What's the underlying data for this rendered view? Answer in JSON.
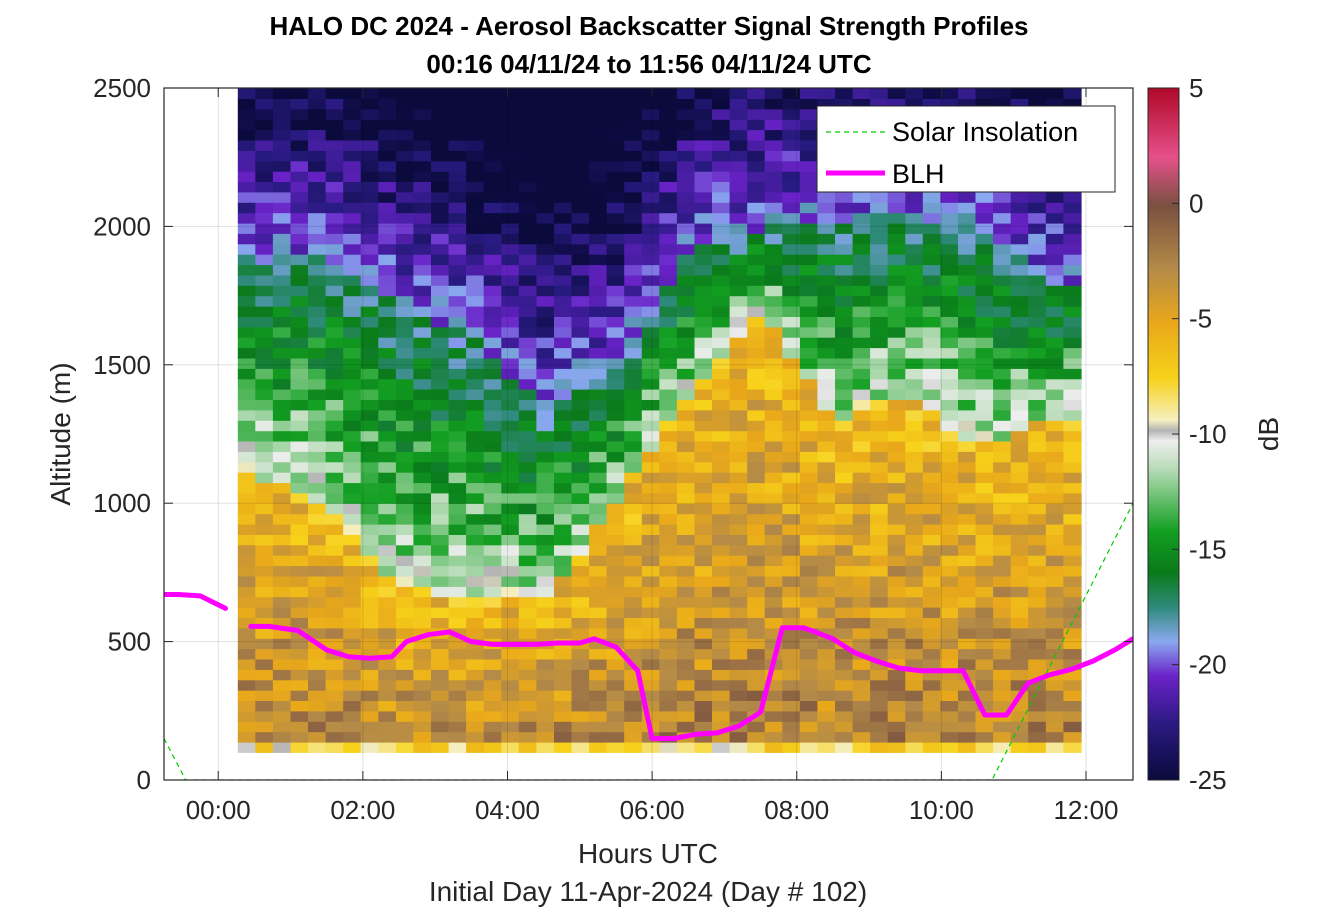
{
  "chart_data": {
    "type": "heatmap",
    "title": "HALO DC 2024 - Aerosol Backscatter Signal Strength Profiles",
    "subtitle": "00:16 04/11/24 to 11:56 04/11/24  UTC",
    "xlabel": "Hours UTC",
    "xlabel2": "Initial Day 11-Apr-2024 (Day # 102)",
    "ylabel": "Altitude (m)",
    "colorbar_label": "dB",
    "xlim": [
      -0.75,
      12.65
    ],
    "ylim": [
      0,
      2500
    ],
    "x_ticks": [
      0,
      2,
      4,
      6,
      8,
      10,
      12
    ],
    "x_tick_labels": [
      "00:00",
      "02:00",
      "04:00",
      "06:00",
      "08:00",
      "10:00",
      "12:00"
    ],
    "y_ticks": [
      0,
      500,
      1000,
      1500,
      2000,
      2500
    ],
    "y_tick_labels": [
      "0",
      "500",
      "1000",
      "1500",
      "2000",
      "2500"
    ],
    "clim": [
      -25,
      5
    ],
    "colorbar_ticks": [
      5,
      0,
      -5,
      -10,
      -15,
      -20,
      -25
    ],
    "colorbar_tick_labels": [
      "5",
      "0",
      "-5",
      "-10",
      "-15",
      "-20",
      "-25"
    ],
    "grid": true,
    "legend_position": "top-right",
    "heatmap": {
      "x_start_hours": 0.27,
      "x_end_hours": 11.93,
      "y_bottom_m": 100,
      "y_top_m": 2500,
      "top_of_profile_m": [
        2500,
        2500,
        2500,
        2500,
        2500,
        2500,
        2500,
        2500,
        2500,
        2500,
        2500,
        2500
      ],
      "bottom_row_m": [
        100,
        150
      ],
      "profile_times_hours": [
        0.5,
        1.5,
        2.5,
        3.5,
        4.5,
        5.5,
        6.5,
        7.5,
        8.5,
        9.5,
        10.5,
        11.5
      ],
      "layer_top_m": [
        1100,
        1000,
        700,
        650,
        650,
        1000,
        1400,
        1700,
        1300,
        1400,
        1200,
        1300
      ],
      "clean_top_m": [
        1900,
        1900,
        1700,
        1600,
        1350,
        1500,
        1900,
        2000,
        2000,
        2050,
        2000,
        1800
      ]
    },
    "series": [
      {
        "name": "Solar Insolation",
        "style": "dashed",
        "color": "#00cc00",
        "x": [
          -0.75,
          -0.45,
          10.7,
          12.65
        ],
        "y": [
          150,
          0,
          0,
          1000
        ]
      },
      {
        "name": "BLH",
        "style": "solid",
        "color": "#ff00ff",
        "segments": [
          {
            "x": [
              -0.75,
              -0.55,
              -0.25,
              0.1
            ],
            "y": [
              670,
              670,
              665,
              620
            ]
          },
          {
            "x": [
              0.45,
              0.7,
              1.1,
              1.5,
              1.8,
              2.1,
              2.4,
              2.6,
              2.9,
              3.2,
              3.5,
              3.8,
              4.1,
              4.4,
              4.7,
              5.0,
              5.2,
              5.5,
              5.8,
              6.0,
              6.3,
              6.6,
              6.9,
              7.2,
              7.5,
              7.8,
              8.1,
              8.5,
              8.8,
              9.1,
              9.4,
              9.7,
              10.0,
              10.3,
              10.6,
              10.9,
              11.2,
              11.5,
              11.8,
              12.1,
              12.4,
              12.65
            ],
            "y": [
              555,
              555,
              540,
              470,
              445,
              440,
              445,
              500,
              525,
              535,
              500,
              490,
              490,
              490,
              495,
              495,
              510,
              480,
              395,
              150,
              150,
              165,
              170,
              195,
              245,
              550,
              550,
              510,
              460,
              430,
              405,
              395,
              395,
              395,
              235,
              235,
              350,
              380,
              400,
              430,
              470,
              510
            ]
          }
        ]
      }
    ],
    "legend": [
      {
        "label": "Solar Insolation",
        "style": "dashed",
        "color": "#00cc00"
      },
      {
        "label": "BLH",
        "style": "solid",
        "color": "#ff00ff"
      }
    ]
  }
}
